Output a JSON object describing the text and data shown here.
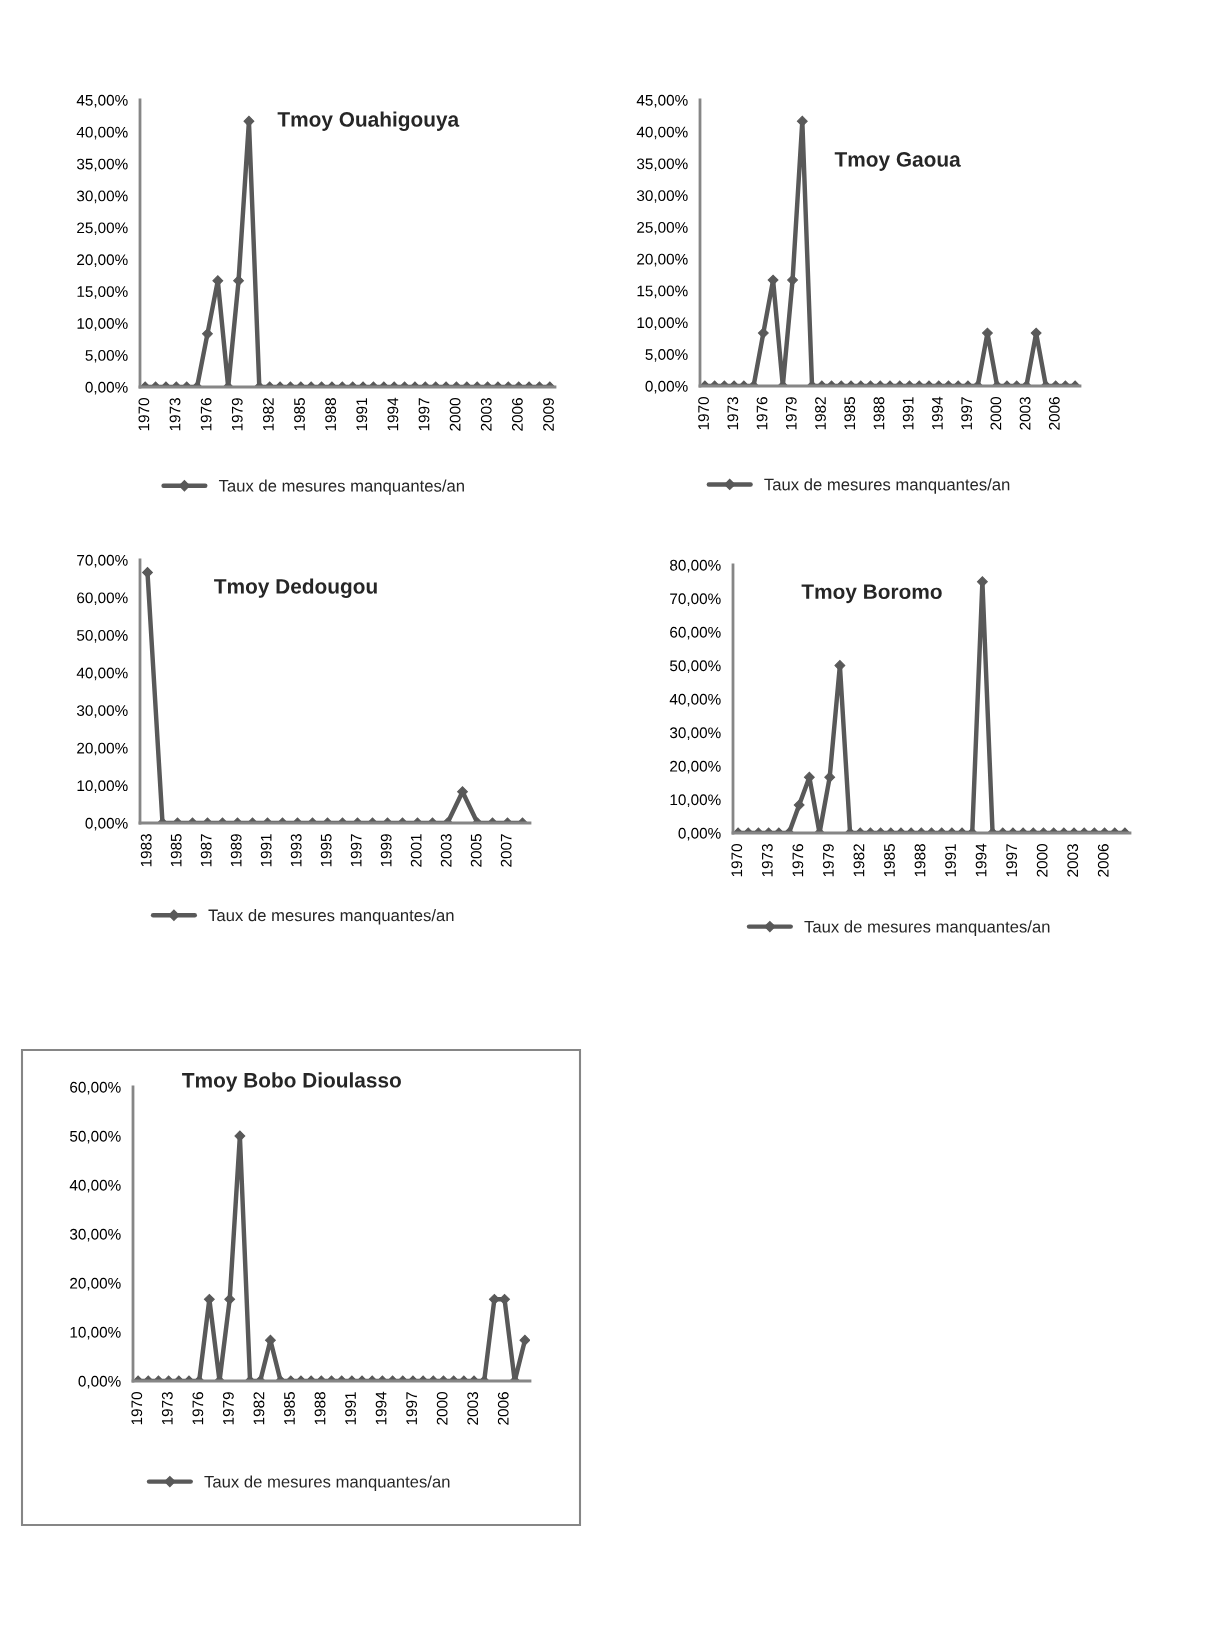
{
  "chart_data": [
    {
      "type": "line",
      "title": "Tmoy Ouahigouya",
      "categories": [
        "1970",
        null,
        null,
        "1973",
        null,
        null,
        "1976",
        null,
        null,
        "1979",
        null,
        null,
        "1982",
        null,
        null,
        "1985",
        null,
        null,
        "1988",
        null,
        null,
        "1991",
        null,
        null,
        "1994",
        null,
        null,
        "1997",
        null,
        null,
        "2000",
        null,
        null,
        "2003",
        null,
        null,
        "2006",
        null,
        null,
        "2009"
      ],
      "series": [
        {
          "name": "Taux de mesures manquantes/an",
          "color": "#595959",
          "values": [
            0,
            0,
            0,
            0,
            0,
            0,
            8.33,
            16.67,
            0,
            16.67,
            41.67,
            0,
            0,
            0,
            0,
            0,
            0,
            0,
            0,
            0,
            0,
            0,
            0,
            0,
            0,
            0,
            0,
            0,
            0,
            0,
            0,
            0,
            0,
            0,
            0,
            0,
            0,
            0,
            0,
            0
          ]
        }
      ],
      "ylim": [
        0,
        45
      ],
      "yticks": [
        {
          "value": 0,
          "label": "0,00%"
        },
        {
          "value": 5,
          "label": "5,00%"
        },
        {
          "value": 10,
          "label": "10,00%"
        },
        {
          "value": 15,
          "label": "15,00%"
        },
        {
          "value": 20,
          "label": "20,00%"
        },
        {
          "value": 25,
          "label": "25,00%"
        },
        {
          "value": 30,
          "label": "30,00%"
        },
        {
          "value": 35,
          "label": "35,00%"
        },
        {
          "value": 40,
          "label": "40,00%"
        },
        {
          "value": 45,
          "label": "45,00%"
        }
      ],
      "marker": "diamond",
      "line_style": "solid",
      "legend": "bottom",
      "grid": false
    },
    {
      "type": "line",
      "title": "Tmoy Gaoua",
      "categories": [
        "1970",
        null,
        null,
        "1973",
        null,
        null,
        "1976",
        null,
        null,
        "1979",
        null,
        null,
        "1982",
        null,
        null,
        "1985",
        null,
        null,
        "1988",
        null,
        null,
        "1991",
        null,
        null,
        "1994",
        null,
        null,
        "1997",
        null,
        null,
        "2000",
        null,
        null,
        "2003",
        null,
        null,
        "2006",
        null,
        null
      ],
      "series": [
        {
          "name": "Taux de mesures manquantes/an",
          "color": "#595959",
          "values": [
            0,
            0,
            0,
            0,
            0,
            0,
            8.33,
            16.67,
            0,
            16.67,
            41.67,
            0,
            0,
            0,
            0,
            0,
            0,
            0,
            0,
            0,
            0,
            0,
            0,
            0,
            0,
            0,
            0,
            0,
            0,
            8.33,
            0,
            0,
            0,
            0,
            8.33,
            0,
            0,
            0,
            0
          ]
        }
      ],
      "ylim": [
        0,
        45
      ],
      "yticks": [
        {
          "value": 0,
          "label": "0,00%"
        },
        {
          "value": 5,
          "label": "5,00%"
        },
        {
          "value": 10,
          "label": "10,00%"
        },
        {
          "value": 15,
          "label": "15,00%"
        },
        {
          "value": 20,
          "label": "20,00%"
        },
        {
          "value": 25,
          "label": "25,00%"
        },
        {
          "value": 30,
          "label": "30,00%"
        },
        {
          "value": 35,
          "label": "35,00%"
        },
        {
          "value": 40,
          "label": "40,00%"
        },
        {
          "value": 45,
          "label": "45,00%"
        }
      ],
      "marker": "diamond",
      "line_style": "solid",
      "legend": "bottom",
      "grid": false
    },
    {
      "type": "line",
      "title": "Tmoy Dedougou",
      "categories": [
        "1983",
        null,
        "1985",
        null,
        "1987",
        null,
        "1989",
        null,
        "1991",
        null,
        "1993",
        null,
        "1995",
        null,
        "1997",
        null,
        "1999",
        null,
        "2001",
        null,
        "2003",
        null,
        "2005",
        null,
        "2007",
        null
      ],
      "series": [
        {
          "name": "Taux de mesures manquantes/an",
          "color": "#595959",
          "values": [
            66.67,
            0,
            0,
            0,
            0,
            0,
            0,
            0,
            0,
            0,
            0,
            0,
            0,
            0,
            0,
            0,
            0,
            0,
            0,
            0,
            0,
            8.33,
            0,
            0,
            0,
            0
          ]
        }
      ],
      "ylim": [
        0,
        70
      ],
      "yticks": [
        {
          "value": 0,
          "label": "0,00%"
        },
        {
          "value": 10,
          "label": "10,00%"
        },
        {
          "value": 20,
          "label": "20,00%"
        },
        {
          "value": 30,
          "label": "30,00%"
        },
        {
          "value": 40,
          "label": "40,00%"
        },
        {
          "value": 50,
          "label": "50,00%"
        },
        {
          "value": 60,
          "label": "60,00%"
        },
        {
          "value": 70,
          "label": "70,00%"
        }
      ],
      "marker": "diamond",
      "line_style": "solid",
      "legend": "bottom",
      "grid": false
    },
    {
      "type": "line",
      "title": "Tmoy Boromo",
      "categories": [
        "1970",
        null,
        null,
        "1973",
        null,
        null,
        "1976",
        null,
        null,
        "1979",
        null,
        null,
        "1982",
        null,
        null,
        "1985",
        null,
        null,
        "1988",
        null,
        null,
        "1991",
        null,
        null,
        "1994",
        null,
        null,
        "1997",
        null,
        null,
        "2000",
        null,
        null,
        "2003",
        null,
        null,
        "2006",
        null,
        null
      ],
      "series": [
        {
          "name": "Taux de mesures manquantes/an",
          "color": "#595959",
          "values": [
            0,
            0,
            0,
            0,
            0,
            0,
            8.33,
            16.67,
            0,
            16.67,
            50,
            0,
            0,
            0,
            0,
            0,
            0,
            0,
            0,
            0,
            0,
            0,
            0,
            0,
            75,
            0,
            0,
            0,
            0,
            0,
            0,
            0,
            0,
            0,
            0,
            0,
            0,
            0,
            0
          ]
        }
      ],
      "ylim": [
        0,
        80
      ],
      "yticks": [
        {
          "value": 0,
          "label": "0,00%"
        },
        {
          "value": 10,
          "label": "10,00%"
        },
        {
          "value": 20,
          "label": "20,00%"
        },
        {
          "value": 30,
          "label": "30,00%"
        },
        {
          "value": 40,
          "label": "40,00%"
        },
        {
          "value": 50,
          "label": "50,00%"
        },
        {
          "value": 60,
          "label": "60,00%"
        },
        {
          "value": 70,
          "label": "70,00%"
        },
        {
          "value": 80,
          "label": "80,00%"
        }
      ],
      "marker": "diamond",
      "line_style": "solid",
      "legend": "bottom",
      "grid": false
    },
    {
      "type": "line",
      "title": "Tmoy Bobo Dioulasso",
      "categories": [
        "1970",
        null,
        null,
        "1973",
        null,
        null,
        "1976",
        null,
        null,
        "1979",
        null,
        null,
        "1982",
        null,
        null,
        "1985",
        null,
        null,
        "1988",
        null,
        null,
        "1991",
        null,
        null,
        "1994",
        null,
        null,
        "1997",
        null,
        null,
        "2000",
        null,
        null,
        "2003",
        null,
        null,
        "2006",
        null,
        null
      ],
      "series": [
        {
          "name": "Taux de mesures manquantes/an",
          "color": "#595959",
          "values": [
            0,
            0,
            0,
            0,
            0,
            0,
            0,
            16.67,
            0,
            16.67,
            50,
            0,
            0,
            8.33,
            0,
            0,
            0,
            0,
            0,
            0,
            0,
            0,
            0,
            0,
            0,
            0,
            0,
            0,
            0,
            0,
            0,
            0,
            0,
            0,
            0,
            16.67,
            16.67,
            0,
            8.33
          ]
        }
      ],
      "ylim": [
        0,
        60
      ],
      "yticks": [
        {
          "value": 0,
          "label": "0,00%"
        },
        {
          "value": 10,
          "label": "10,00%"
        },
        {
          "value": 20,
          "label": "20,00%"
        },
        {
          "value": 30,
          "label": "30,00%"
        },
        {
          "value": 40,
          "label": "40,00%"
        },
        {
          "value": 50,
          "label": "50,00%"
        },
        {
          "value": 60,
          "label": "60,00%"
        }
      ],
      "marker": "diamond",
      "line_style": "solid",
      "legend": "bottom",
      "grid": false
    }
  ]
}
